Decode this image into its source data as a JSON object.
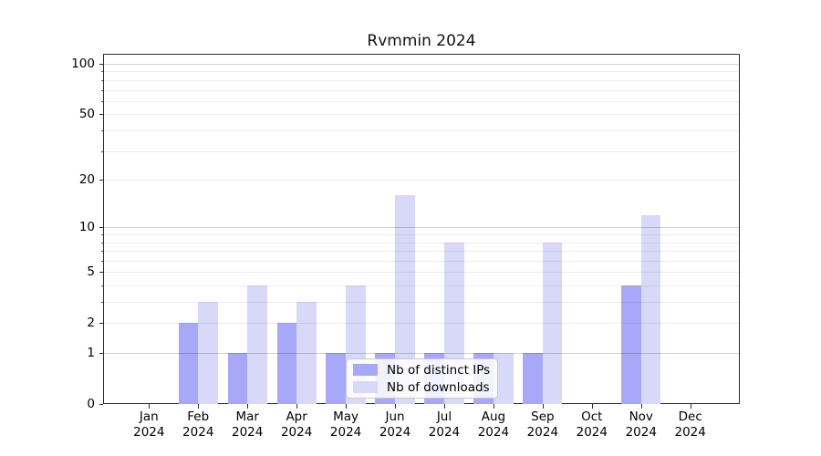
{
  "chart_data": {
    "type": "bar",
    "title": "Rvmmin 2024",
    "categories": [
      "Jan 2024",
      "Feb 2024",
      "Mar 2024",
      "Apr 2024",
      "May 2024",
      "Jun 2024",
      "Jul 2024",
      "Aug 2024",
      "Sep 2024",
      "Oct 2024",
      "Nov 2024",
      "Dec 2024"
    ],
    "series": [
      {
        "name": "Nb of distinct IPs",
        "color": "#a8a8f8",
        "values": [
          0,
          2,
          1,
          2,
          1,
          1,
          1,
          1,
          1,
          0,
          4,
          0
        ]
      },
      {
        "name": "Nb of downloads",
        "color": "#d8d8f8",
        "values": [
          0,
          3,
          4,
          3,
          4,
          16,
          8,
          1,
          8,
          0,
          12,
          0
        ]
      }
    ],
    "xlabel": "",
    "ylabel": "",
    "y_scale": "log1p",
    "ylim": [
      0,
      114
    ],
    "y_ticks": [
      0,
      1,
      2,
      5,
      10,
      20,
      50,
      100
    ],
    "y_major_gridlines": [
      1,
      10,
      100
    ],
    "y_minor_gridlines": [
      2,
      3,
      4,
      5,
      6,
      7,
      8,
      9,
      20,
      30,
      40,
      50,
      60,
      70,
      80,
      90
    ],
    "grid": true,
    "legend_position": "lower center"
  },
  "colors": {
    "background": "#ffffff",
    "spine": "#2b2b2b",
    "major_grid": "rgba(0,0,0,0.18)",
    "minor_grid": "rgba(0,0,0,0.07)"
  }
}
